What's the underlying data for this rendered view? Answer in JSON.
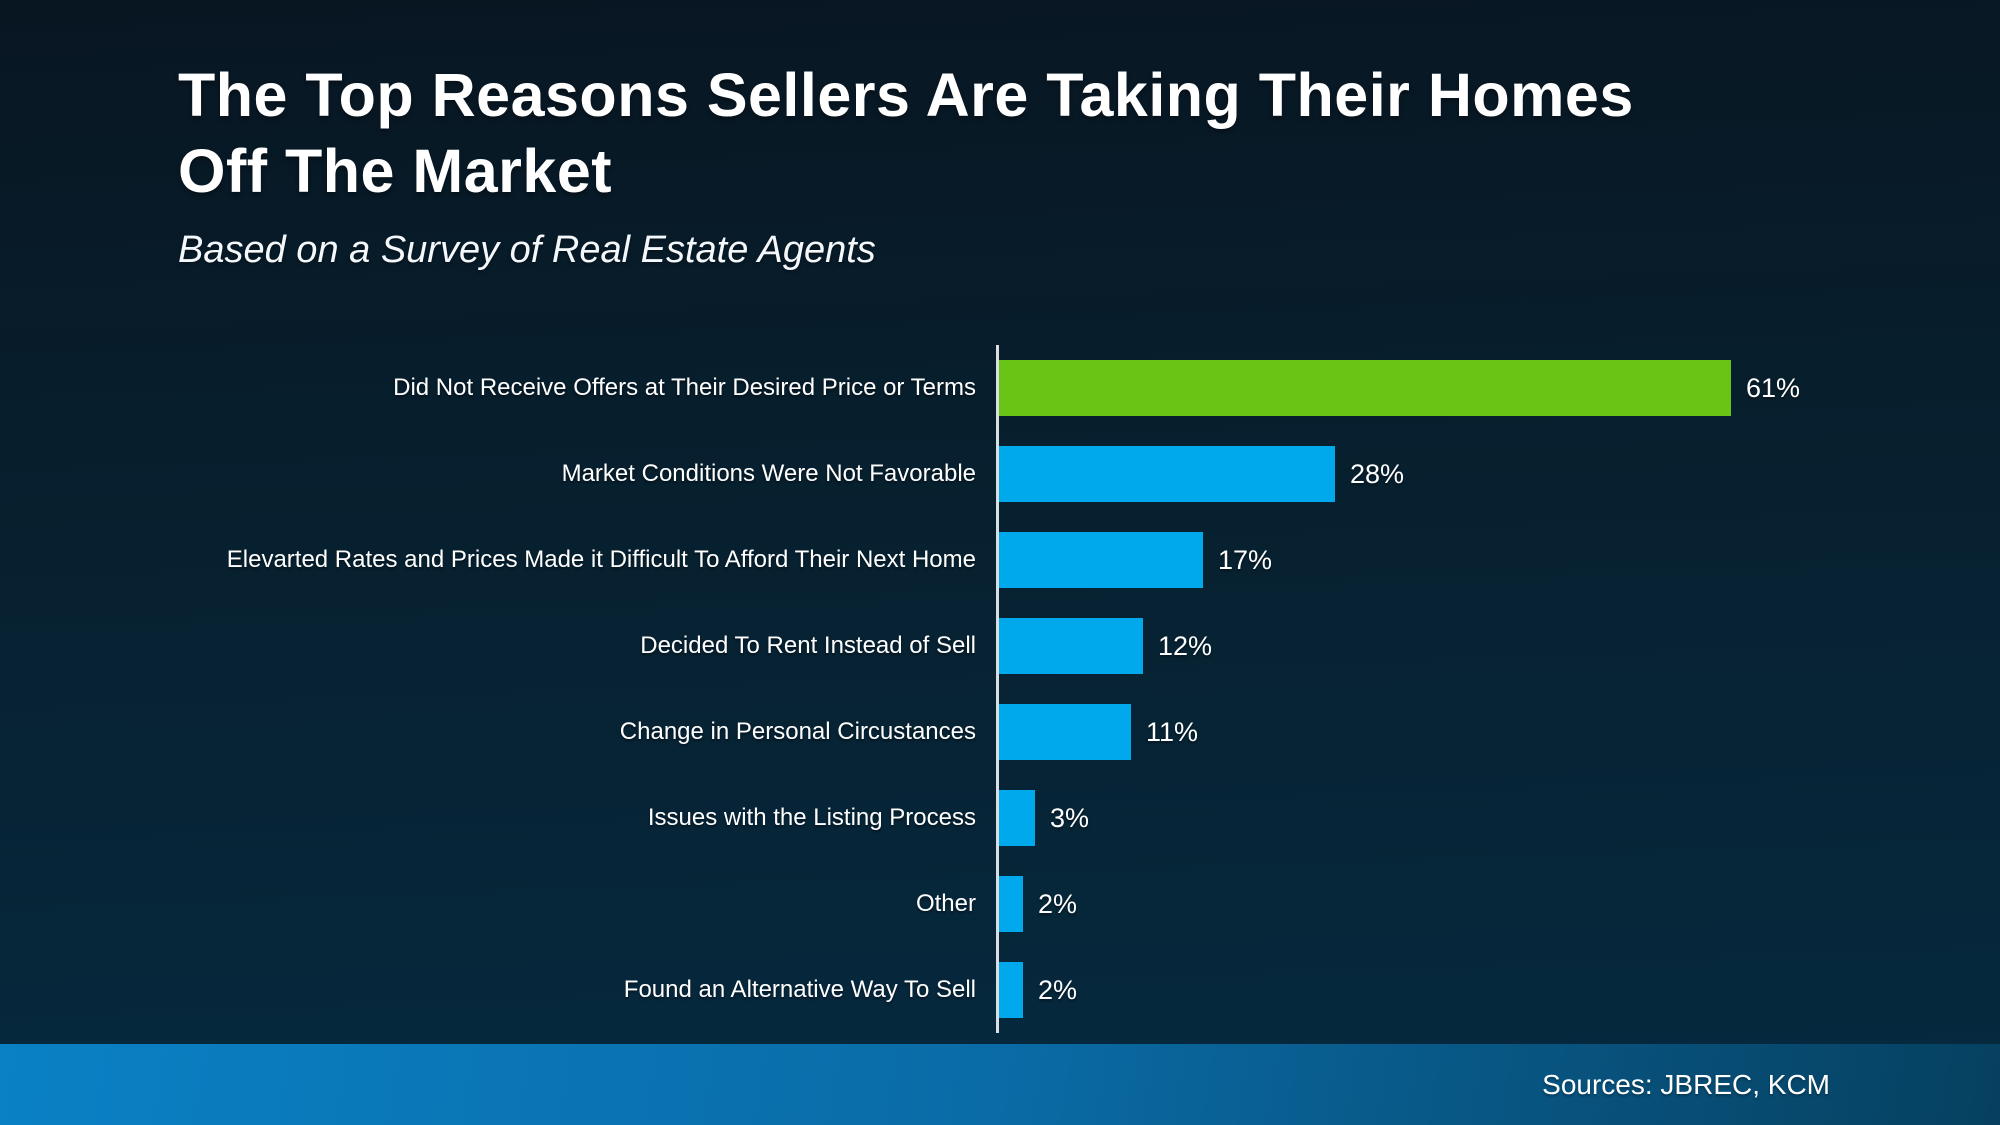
{
  "header": {
    "title_line1": "The Top Reasons Sellers Are Taking Their Homes",
    "title_line2": "Off The Market",
    "subtitle": "Based on a Survey of Real Estate Agents"
  },
  "chart_data": {
    "type": "bar",
    "orientation": "horizontal",
    "title": "The Top Reasons Sellers Are Taking Their Homes Off The Market",
    "subtitle": "Based on a Survey of Real Estate Agents",
    "categories": [
      "Did Not Receive Offers at Their Desired Price or Terms",
      "Market Conditions Were Not Favorable",
      "Elevarted Rates and Prices Made it Difficult To Afford Their Next Home",
      "Decided To Rent Instead of Sell",
      "Change in Personal Circustances",
      "Issues with the Listing Process",
      "Other",
      "Found an Alternative Way To Sell"
    ],
    "values": [
      61,
      28,
      17,
      12,
      11,
      3,
      2,
      2
    ],
    "value_labels": [
      "61%",
      "28%",
      "17%",
      "12%",
      "11%",
      "3%",
      "2%",
      "2%"
    ],
    "xlabel": "",
    "ylabel": "",
    "xlim": [
      0,
      84
    ],
    "grid": false,
    "legend": false,
    "highlight_index": 0,
    "highlight_color": "#69c515",
    "bar_color": "#00a9ec",
    "axis_color": "#d9dee2",
    "background_color": "#07202f"
  },
  "footer": {
    "sources": "Sources: JBREC, KCM"
  }
}
